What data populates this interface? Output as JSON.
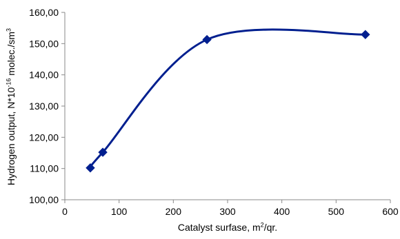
{
  "chart_data": {
    "type": "line",
    "title": "",
    "xlabel": {
      "pre": "Catalyst surfase, m",
      "sup": "2",
      "post": "/qr."
    },
    "ylabel": {
      "pre": "Hydrogen output, N*10",
      "sup": "-16",
      "mid": " molec./sm",
      "sup2": "3"
    },
    "xlim": [
      0,
      600
    ],
    "ylim": [
      100,
      160
    ],
    "x_ticks": [
      0,
      100,
      200,
      300,
      400,
      500,
      600
    ],
    "y_ticks": [
      100,
      110,
      120,
      130,
      140,
      150,
      160
    ],
    "y_tick_labels": [
      "100,00",
      "110,00",
      "120,00",
      "130,00",
      "140,00",
      "150,00",
      "160,00"
    ],
    "grid": false,
    "smooth": true,
    "series": [
      {
        "marker": "diamond",
        "color": "#001f8f",
        "x": [
          47,
          70,
          262,
          554
        ],
        "y": [
          110.2,
          115.2,
          151.3,
          152.9
        ]
      }
    ]
  }
}
